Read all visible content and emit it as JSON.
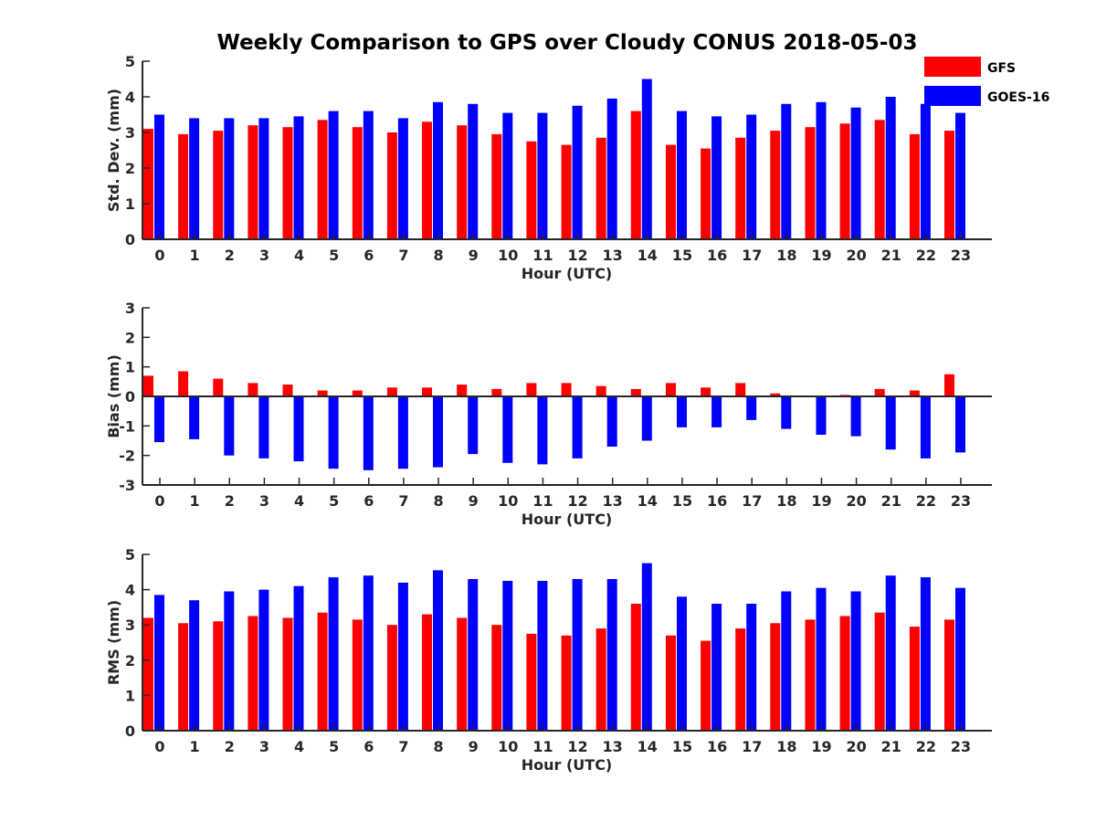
{
  "title": "Weekly Comparison to GPS over Cloudy CONUS 2018-05-03",
  "colors": {
    "gfs": "#ff0000",
    "goes16": "#0000ff",
    "axis": "#262626"
  },
  "legend": {
    "placement": "top-right",
    "items": [
      "GFS",
      "GOES-16"
    ]
  },
  "chart_data": [
    {
      "type": "bar",
      "xlabel": "Hour (UTC)",
      "ylabel": "Std. Dev. (mm)",
      "ylim": [
        0,
        5
      ],
      "yticks": [
        0,
        1,
        2,
        3,
        4,
        5
      ],
      "categories": [
        "0",
        "1",
        "2",
        "3",
        "4",
        "5",
        "6",
        "7",
        "8",
        "9",
        "10",
        "11",
        "12",
        "13",
        "14",
        "15",
        "16",
        "17",
        "18",
        "19",
        "20",
        "21",
        "22",
        "23"
      ],
      "series": [
        {
          "name": "GFS",
          "values": [
            3.1,
            2.95,
            3.05,
            3.2,
            3.15,
            3.35,
            3.15,
            3.0,
            3.3,
            3.2,
            2.95,
            2.75,
            2.65,
            2.85,
            3.6,
            2.65,
            2.55,
            2.85,
            3.05,
            3.15,
            3.25,
            3.35,
            2.95,
            3.05
          ]
        },
        {
          "name": "GOES-16",
          "values": [
            3.5,
            3.4,
            3.4,
            3.4,
            3.45,
            3.6,
            3.6,
            3.4,
            3.85,
            3.8,
            3.55,
            3.55,
            3.75,
            3.95,
            4.5,
            3.6,
            3.45,
            3.5,
            3.8,
            3.85,
            3.7,
            4.0,
            3.8,
            3.55
          ]
        }
      ]
    },
    {
      "type": "bar",
      "xlabel": "Hour (UTC)",
      "ylabel": "Bias (mm)",
      "ylim": [
        -3,
        3
      ],
      "yticks": [
        -3,
        -2,
        -1,
        0,
        1,
        2,
        3
      ],
      "categories": [
        "0",
        "1",
        "2",
        "3",
        "4",
        "5",
        "6",
        "7",
        "8",
        "9",
        "10",
        "11",
        "12",
        "13",
        "14",
        "15",
        "16",
        "17",
        "18",
        "19",
        "20",
        "21",
        "22",
        "23"
      ],
      "series": [
        {
          "name": "GFS",
          "values": [
            0.7,
            0.85,
            0.6,
            0.45,
            0.4,
            0.2,
            0.2,
            0.3,
            0.3,
            0.4,
            0.25,
            0.45,
            0.45,
            0.35,
            0.25,
            0.45,
            0.3,
            0.45,
            0.1,
            0.0,
            0.05,
            0.25,
            0.2,
            0.75
          ]
        },
        {
          "name": "GOES-16",
          "values": [
            -1.55,
            -1.45,
            -2.0,
            -2.1,
            -2.2,
            -2.45,
            -2.5,
            -2.45,
            -2.4,
            -1.95,
            -2.25,
            -2.3,
            -2.1,
            -1.7,
            -1.5,
            -1.05,
            -1.05,
            -0.8,
            -1.1,
            -1.3,
            -1.35,
            -1.8,
            -2.1,
            -1.9
          ]
        }
      ]
    },
    {
      "type": "bar",
      "xlabel": "Hour (UTC)",
      "ylabel": "RMS (mm)",
      "ylim": [
        0,
        5
      ],
      "yticks": [
        0,
        1,
        2,
        3,
        4,
        5
      ],
      "categories": [
        "0",
        "1",
        "2",
        "3",
        "4",
        "5",
        "6",
        "7",
        "8",
        "9",
        "10",
        "11",
        "12",
        "13",
        "14",
        "15",
        "16",
        "17",
        "18",
        "19",
        "20",
        "21",
        "22",
        "23"
      ],
      "series": [
        {
          "name": "GFS",
          "values": [
            3.2,
            3.05,
            3.1,
            3.25,
            3.2,
            3.35,
            3.15,
            3.0,
            3.3,
            3.2,
            3.0,
            2.75,
            2.7,
            2.9,
            3.6,
            2.7,
            2.55,
            2.9,
            3.05,
            3.15,
            3.25,
            3.35,
            2.95,
            3.15
          ]
        },
        {
          "name": "GOES-16",
          "values": [
            3.85,
            3.7,
            3.95,
            4.0,
            4.1,
            4.35,
            4.4,
            4.2,
            4.55,
            4.3,
            4.25,
            4.25,
            4.3,
            4.3,
            4.75,
            3.8,
            3.6,
            3.6,
            3.95,
            4.05,
            3.95,
            4.4,
            4.35,
            4.05
          ]
        }
      ]
    }
  ]
}
